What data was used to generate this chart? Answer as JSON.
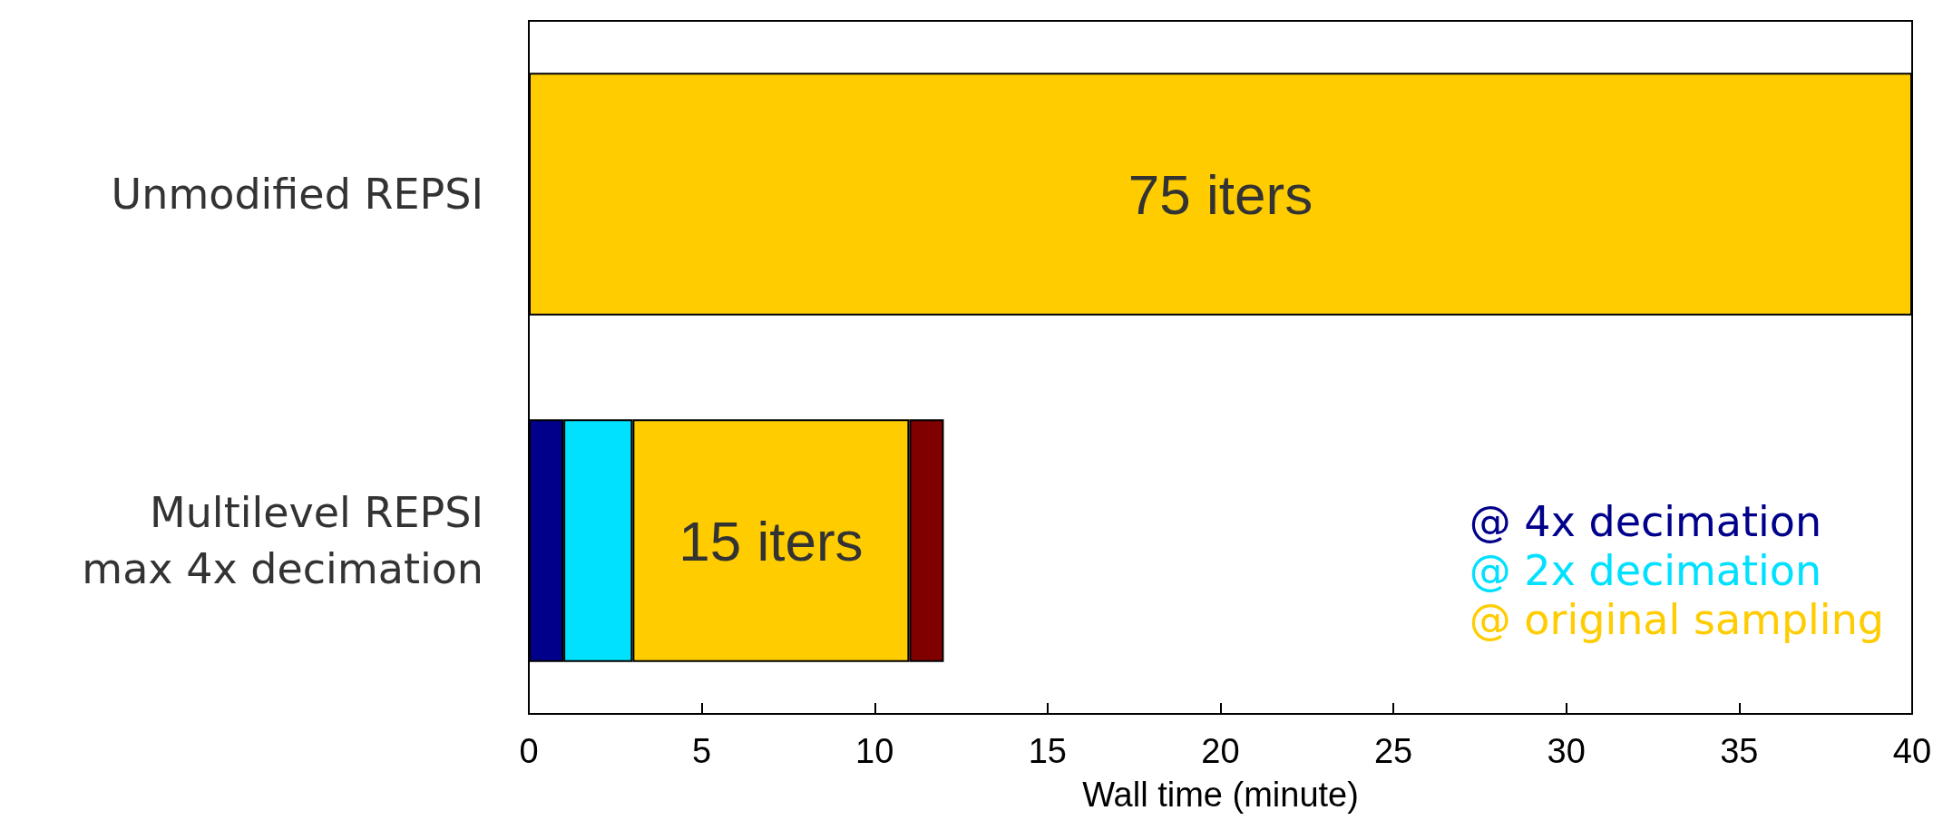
{
  "chart_data": {
    "type": "bar",
    "orientation": "horizontal",
    "stacked": true,
    "xlabel": "Wall time (minute)",
    "categories": [
      "Unmodified REPSI",
      "Multilevel REPSI\nmax 4x decimation"
    ],
    "series": [
      {
        "name": "@ 4x decimation",
        "color": "#00008b",
        "values": [
          null,
          1
        ]
      },
      {
        "name": "@ 2x decimation",
        "color": "#00e0ff",
        "values": [
          null,
          2
        ]
      },
      {
        "name": "@ original sampling",
        "color": "#ffcc00",
        "values": [
          40,
          8
        ]
      },
      {
        "color": "#800000",
        "values": [
          null,
          1
        ]
      }
    ],
    "xlim": [
      0,
      40
    ],
    "xticks": [
      0,
      5,
      10,
      15,
      20,
      25,
      30,
      35,
      40
    ],
    "grid": false,
    "legend": "bottom right",
    "annotations": [
      "75 iters",
      "15 iters"
    ]
  }
}
